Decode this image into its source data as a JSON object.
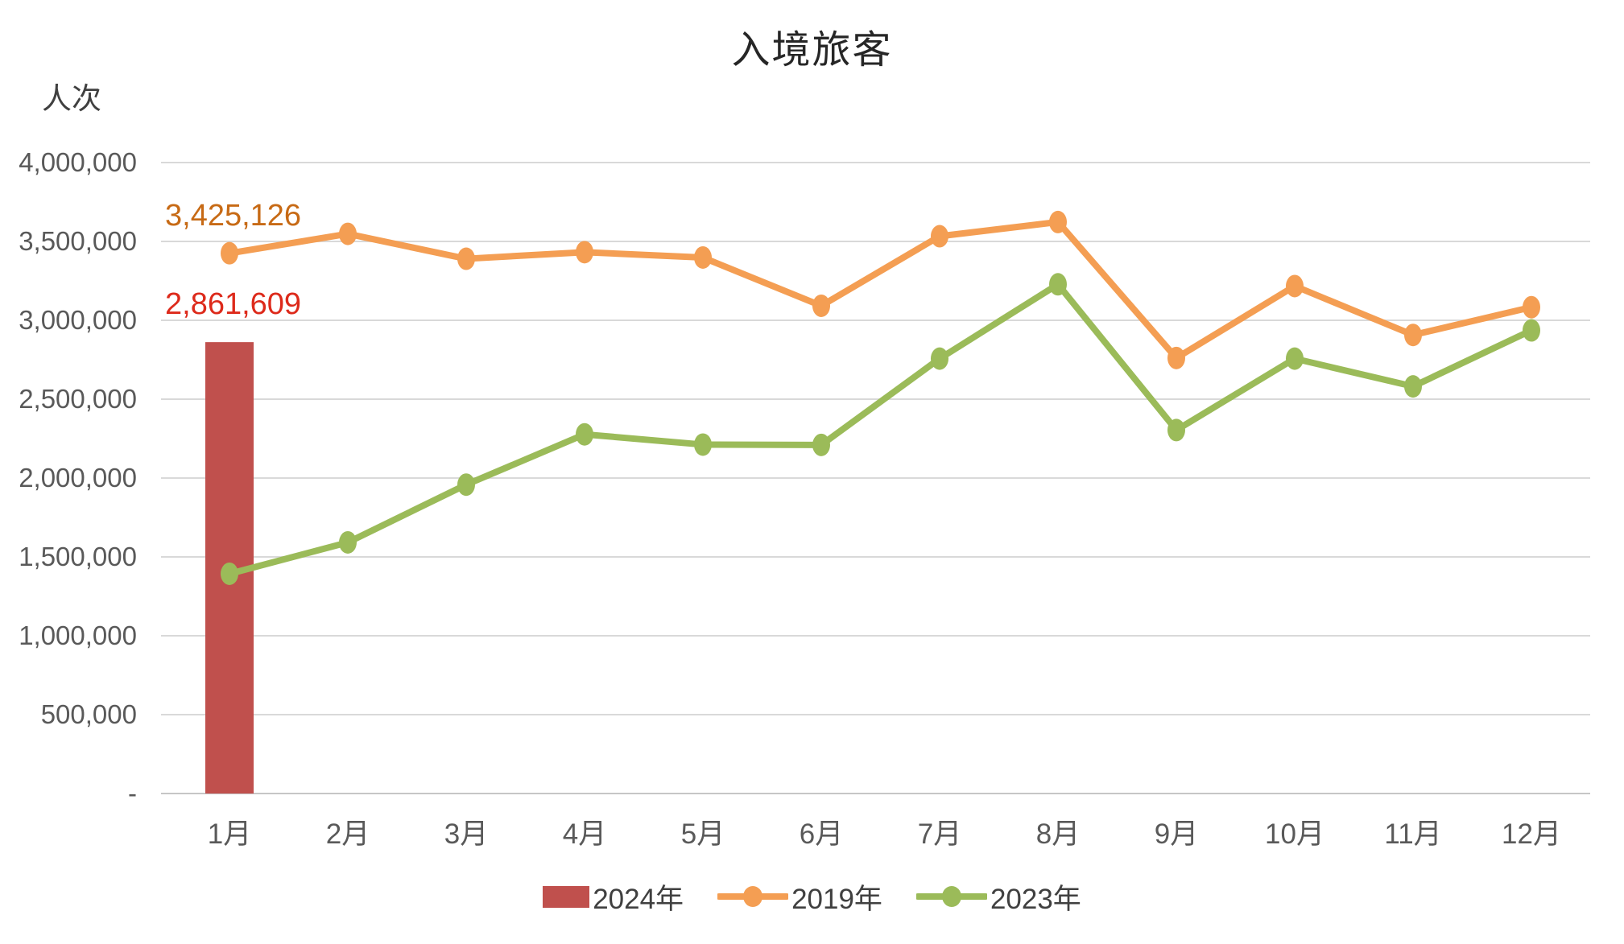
{
  "title": "入境旅客",
  "y_axis": {
    "unit_label": "人次",
    "tick_labels_top_to_bottom": [
      "4,000,000",
      "3,500,000",
      "3,000,000",
      "2,500,000",
      "2,000,000",
      "1,500,000",
      "1,000,000",
      "500,000",
      "-"
    ]
  },
  "colors": {
    "bar_2024": "#C0504D",
    "line_2019": "#F49E53",
    "line_2023": "#9BBB59",
    "data_label_2019": "#C76A15",
    "data_label_2024": "#DD2A1B",
    "axis_text": "#595959",
    "gridline": "#D9D9D9",
    "zero_line": "#C6C6C6",
    "title_text": "#262626"
  },
  "chart_data": {
    "type": "combo",
    "title": "入境旅客",
    "ylabel": "人次",
    "ylim": [
      0,
      4000000
    ],
    "y_tick_interval": 500000,
    "grid": true,
    "legend_position": "bottom",
    "categories": [
      "1月",
      "2月",
      "3月",
      "4月",
      "5月",
      "6月",
      "7月",
      "8月",
      "9月",
      "10月",
      "11月",
      "12月"
    ],
    "series": [
      {
        "name": "2024年",
        "chart_type": "bar",
        "color": "#C0504D",
        "values": [
          2861609,
          null,
          null,
          null,
          null,
          null,
          null,
          null,
          null,
          null,
          null,
          null
        ],
        "data_label": {
          "text": "2,861,609",
          "color": "#DD2A1B",
          "category_index": 0
        }
      },
      {
        "name": "2019年",
        "chart_type": "line",
        "color": "#F49E53",
        "values": [
          3425126,
          3548000,
          3390000,
          3432000,
          3398000,
          3092000,
          3533000,
          3623000,
          2761000,
          3217000,
          2907000,
          3083000
        ],
        "data_label": {
          "text": "3,425,126",
          "color": "#C76A15",
          "category_index": 0
        }
      },
      {
        "name": "2023年",
        "chart_type": "line",
        "color": "#9BBB59",
        "values": [
          1393000,
          1592000,
          1958000,
          2277000,
          2212000,
          2210000,
          2757000,
          3228000,
          2304000,
          2757000,
          2581000,
          2936000
        ],
        "data_label": null
      }
    ]
  }
}
